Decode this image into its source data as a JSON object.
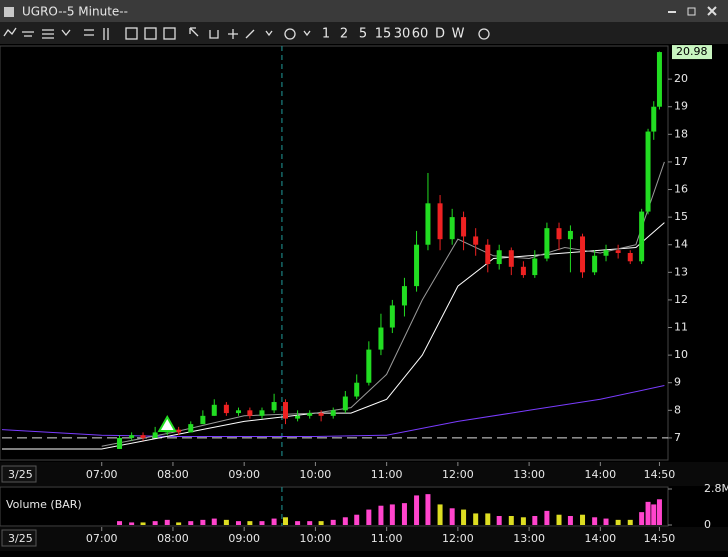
{
  "window": {
    "title": "UGRO--5 Minute--"
  },
  "toolbar": {
    "intervals": [
      "1",
      "2",
      "5",
      "15",
      "30",
      "60",
      "D",
      "W"
    ]
  },
  "chart_data": {
    "type": "candlestick",
    "date": "3/25",
    "xlim": [
      5.6,
      14.95
    ],
    "xticks": [
      {
        "value": 7,
        "label": "07:00"
      },
      {
        "value": 8,
        "label": "08:00"
      },
      {
        "value": 9,
        "label": "09:00"
      },
      {
        "value": 10,
        "label": "10:00"
      },
      {
        "value": 11,
        "label": "11:00"
      },
      {
        "value": 12,
        "label": "12:00"
      },
      {
        "value": 13,
        "label": "13:00"
      },
      {
        "value": 14,
        "label": "14:00"
      },
      {
        "value": 14.83,
        "label": "14:50"
      }
    ],
    "ylim": [
      6.2,
      21.2
    ],
    "yticks": [
      7,
      8,
      9,
      10,
      11,
      12,
      13,
      14,
      15,
      16,
      17,
      18,
      19,
      20
    ],
    "last_price": 20.98,
    "hline": 7,
    "vline": 9.53,
    "marker": {
      "x": 7.92,
      "y": 7.25
    },
    "up_color": "#22dd22",
    "down_color": "#ee2222",
    "x": [
      7.25,
      7.42,
      7.58,
      7.75,
      7.92,
      8.08,
      8.25,
      8.42,
      8.58,
      8.75,
      8.92,
      9.08,
      9.25,
      9.42,
      9.58,
      9.75,
      9.92,
      10.08,
      10.25,
      10.42,
      10.58,
      10.75,
      10.92,
      11.08,
      11.25,
      11.42,
      11.58,
      11.75,
      11.92,
      12.08,
      12.25,
      12.42,
      12.58,
      12.75,
      12.92,
      13.08,
      13.25,
      13.42,
      13.58,
      13.75,
      13.92,
      14.08,
      14.25,
      14.42,
      14.58,
      14.67,
      14.75,
      14.83
    ],
    "open": [
      6.6,
      7.0,
      7.1,
      7.0,
      7.2,
      7.3,
      7.2,
      7.5,
      7.8,
      8.2,
      7.9,
      8.0,
      7.8,
      8.0,
      8.3,
      7.7,
      7.8,
      7.9,
      7.8,
      8.0,
      8.5,
      9.0,
      10.2,
      11.0,
      11.8,
      12.5,
      14.0,
      15.5,
      14.2,
      15.0,
      14.3,
      14.0,
      13.3,
      13.8,
      13.2,
      12.9,
      13.5,
      14.6,
      14.2,
      14.3,
      13.0,
      13.6,
      13.8,
      13.7,
      13.4,
      15.2,
      18.1,
      19.0
    ],
    "high": [
      7.1,
      7.2,
      7.2,
      7.4,
      7.4,
      7.4,
      7.6,
      8.0,
      8.4,
      8.3,
      8.1,
      8.1,
      8.1,
      8.6,
      8.4,
      8.0,
      8.0,
      8.0,
      8.1,
      8.7,
      9.3,
      10.5,
      11.5,
      12.0,
      12.8,
      14.5,
      16.6,
      15.8,
      15.3,
      15.2,
      14.6,
      14.2,
      14.0,
      13.9,
      13.4,
      13.8,
      14.8,
      14.8,
      14.7,
      14.4,
      13.8,
      14.0,
      14.0,
      13.8,
      15.3,
      18.2,
      19.2,
      21.0
    ],
    "low": [
      6.6,
      6.9,
      6.9,
      7.0,
      7.1,
      7.1,
      7.2,
      7.5,
      7.8,
      7.8,
      7.8,
      7.7,
      7.7,
      7.9,
      7.5,
      7.6,
      7.7,
      7.6,
      7.7,
      7.9,
      8.4,
      8.9,
      10.0,
      10.8,
      11.4,
      12.3,
      13.8,
      13.8,
      14.0,
      13.8,
      13.6,
      13.0,
      13.1,
      12.9,
      12.8,
      12.8,
      13.4,
      13.8,
      13.0,
      12.8,
      12.9,
      13.4,
      13.5,
      13.3,
      13.3,
      15.1,
      17.8,
      18.9
    ],
    "close": [
      7.0,
      7.1,
      7.0,
      7.2,
      7.3,
      7.2,
      7.5,
      7.8,
      8.2,
      7.9,
      8.0,
      7.8,
      8.0,
      8.3,
      7.7,
      7.8,
      7.9,
      7.8,
      8.0,
      8.5,
      9.0,
      10.2,
      11.0,
      11.8,
      12.5,
      14.0,
      15.5,
      14.2,
      15.0,
      14.3,
      14.0,
      13.3,
      13.8,
      13.2,
      12.9,
      13.5,
      14.6,
      14.2,
      14.5,
      13.0,
      13.6,
      13.8,
      13.7,
      13.4,
      15.2,
      18.1,
      19.0,
      20.98
    ],
    "lines": [
      {
        "color": "#7a3cff",
        "x": [
          5.6,
          7,
          8,
          9,
          10,
          11,
          12,
          13,
          14,
          14.9
        ],
        "values": [
          7.3,
          7.1,
          7.05,
          7.05,
          7.05,
          7.1,
          7.6,
          8.0,
          8.4,
          8.9
        ]
      },
      {
        "color": "#ffffff",
        "x": [
          5.6,
          7,
          8,
          9,
          10,
          10.5,
          11,
          11.5,
          12,
          12.5,
          13,
          13.5,
          14,
          14.5,
          14.9
        ],
        "values": [
          6.6,
          6.6,
          7.1,
          7.6,
          7.9,
          7.9,
          8.4,
          10.0,
          12.5,
          13.5,
          13.6,
          13.7,
          13.8,
          13.9,
          14.8
        ]
      },
      {
        "color": "#9a9a9a",
        "x": [
          7,
          8,
          9,
          10,
          10.5,
          11,
          11.5,
          12,
          12.5,
          13,
          13.5,
          14,
          14.5,
          14.9
        ],
        "values": [
          6.7,
          7.2,
          7.8,
          7.9,
          8.1,
          9.3,
          12.0,
          14.2,
          13.6,
          13.5,
          13.9,
          13.7,
          14.0,
          17.0
        ]
      }
    ],
    "volume": {
      "title": "Volume (BAR)",
      "ylim": [
        0,
        2.8
      ],
      "yticks": [
        0,
        {
          "value": 2.8,
          "label": "2.8M"
        }
      ],
      "up_color": "#ff44cc",
      "down_color": "#dddd22",
      "values": [
        0.3,
        0.2,
        0.2,
        0.3,
        0.4,
        0.2,
        0.3,
        0.4,
        0.5,
        0.4,
        0.3,
        0.3,
        0.3,
        0.5,
        0.6,
        0.3,
        0.3,
        0.3,
        0.4,
        0.6,
        0.8,
        1.2,
        1.5,
        1.6,
        1.7,
        2.3,
        2.4,
        1.6,
        1.3,
        1.2,
        0.9,
        0.9,
        0.7,
        0.7,
        0.6,
        0.7,
        1.1,
        0.8,
        0.7,
        0.8,
        0.6,
        0.5,
        0.4,
        0.4,
        1.0,
        1.8,
        1.6,
        2.0
      ]
    }
  }
}
